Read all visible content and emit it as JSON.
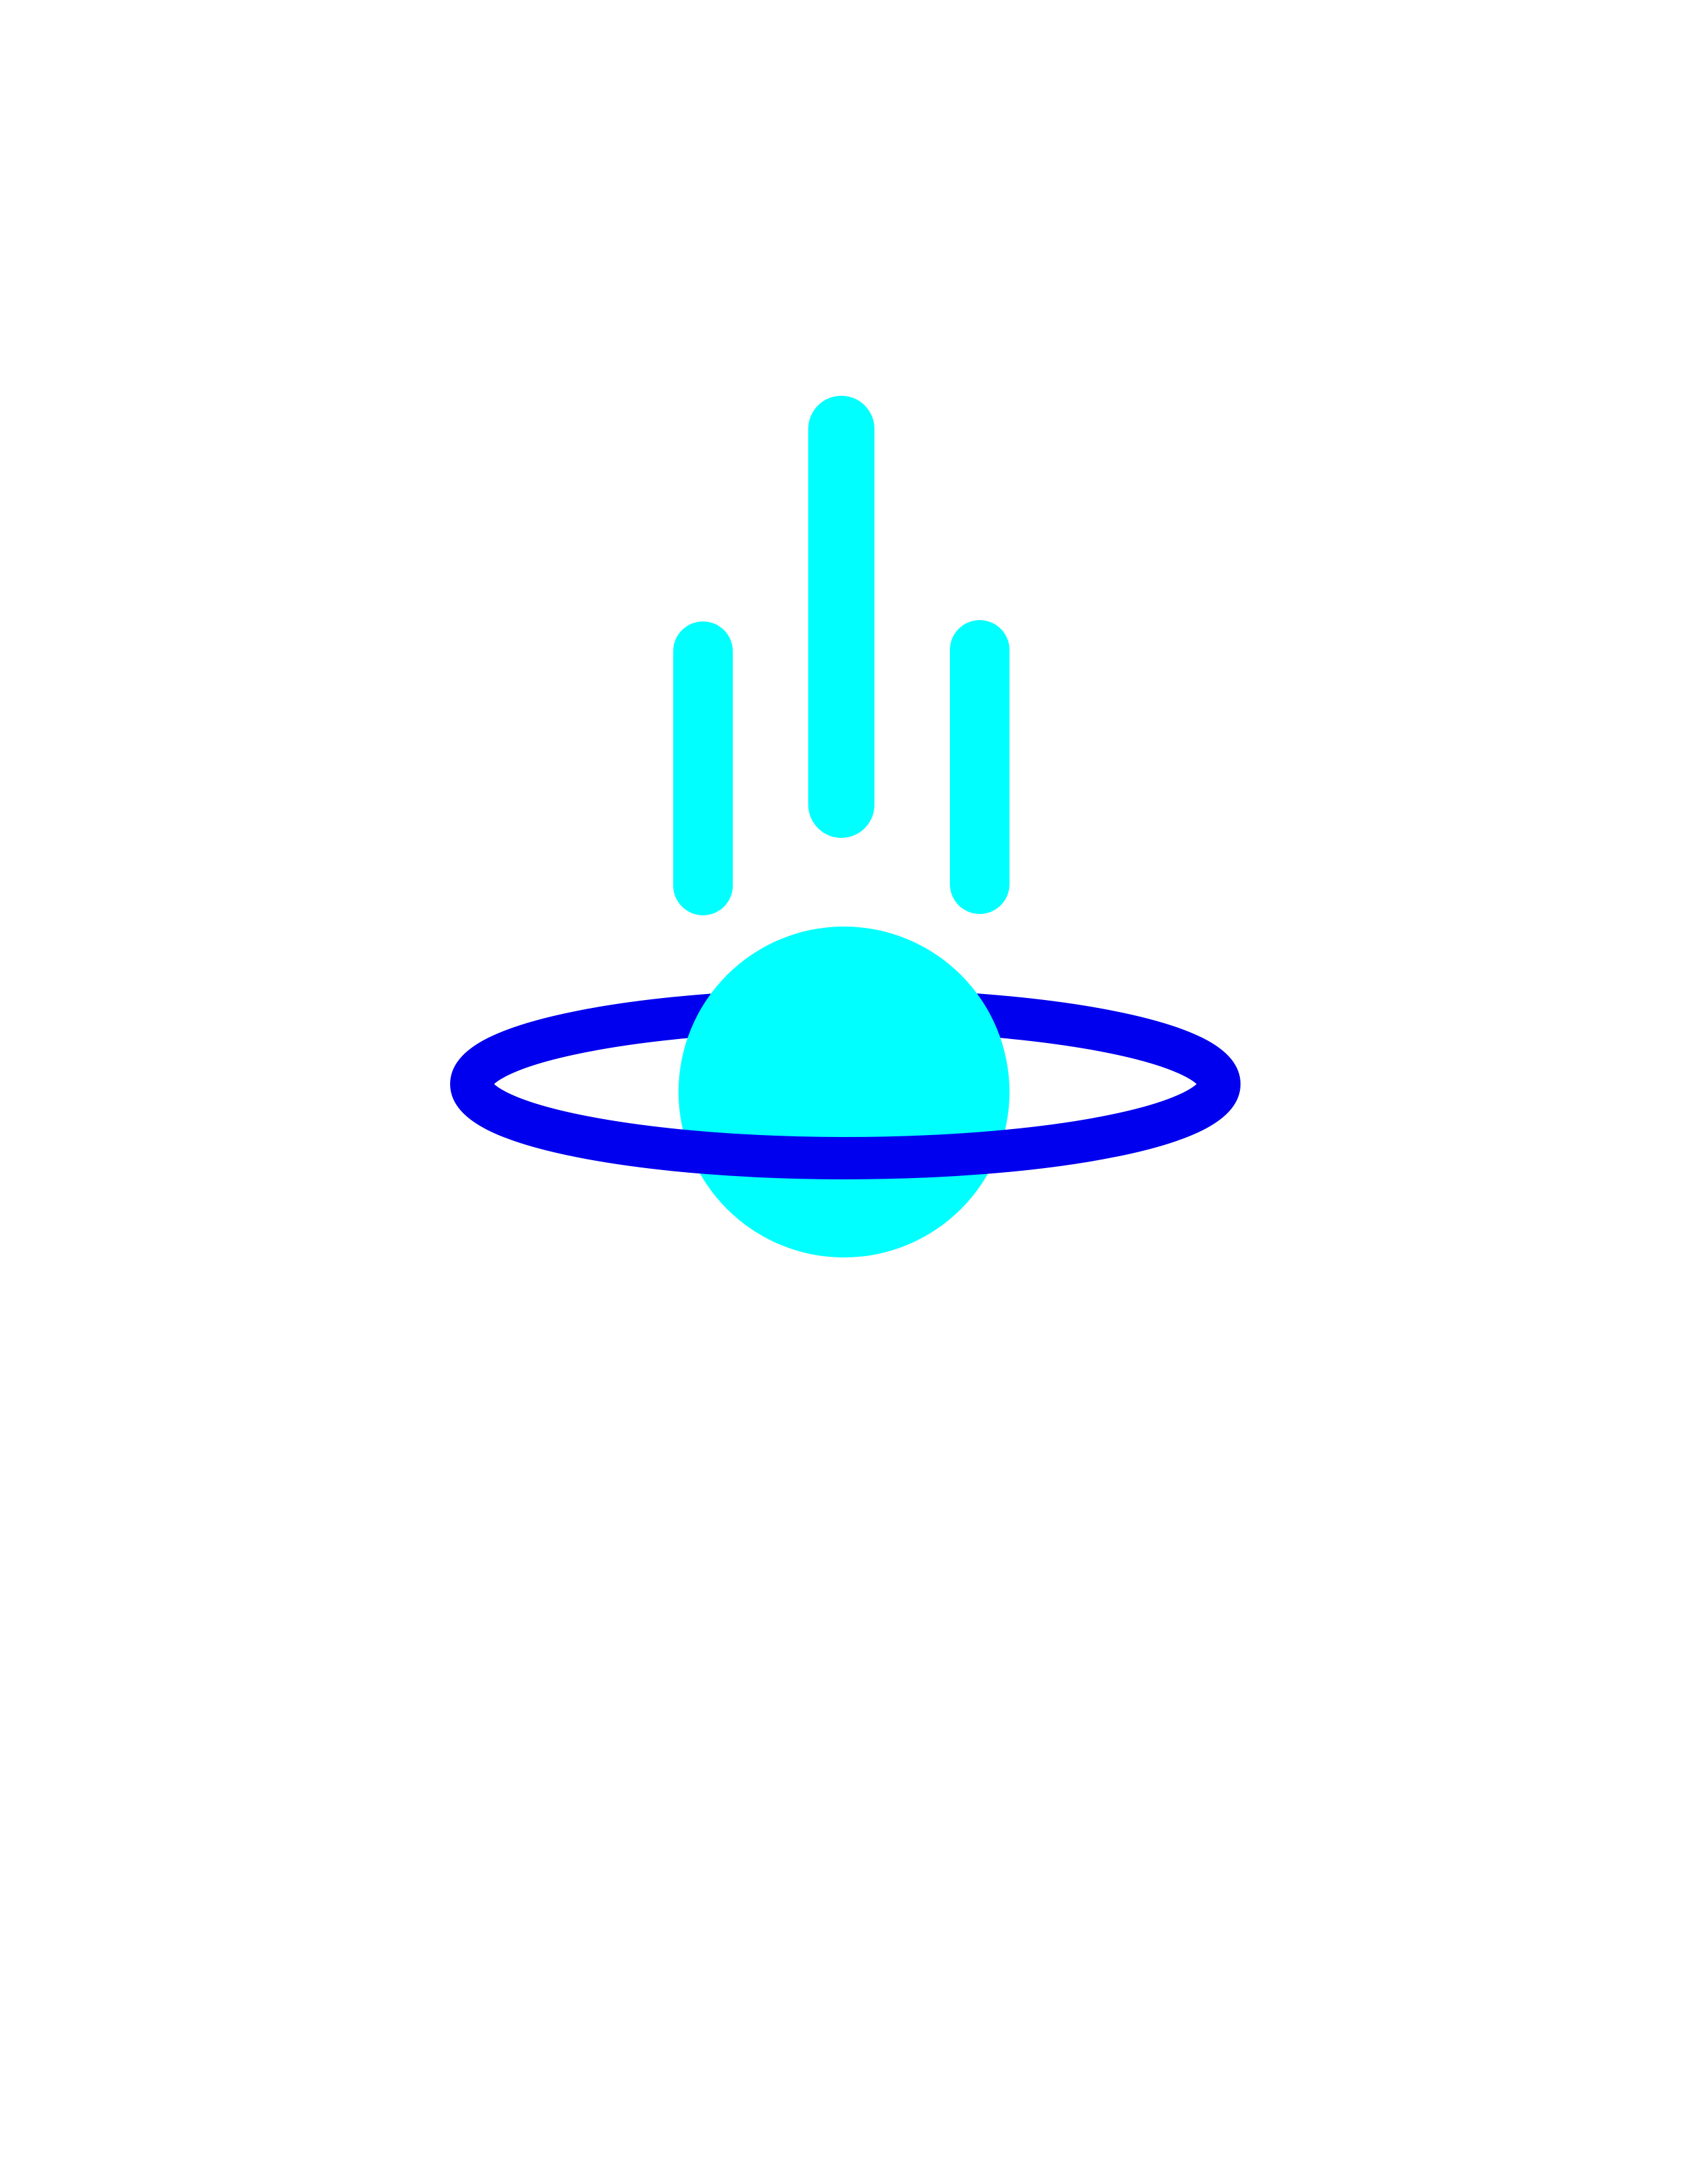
{
  "page": {
    "background": "#ffffff"
  },
  "logo": {
    "icon": "planet-with-ring-and-falling-streaks-icon",
    "colors": {
      "planet": "#00ffff",
      "streaks": "#00ffff",
      "ring": "#0000ee"
    },
    "streak_count": 3
  }
}
